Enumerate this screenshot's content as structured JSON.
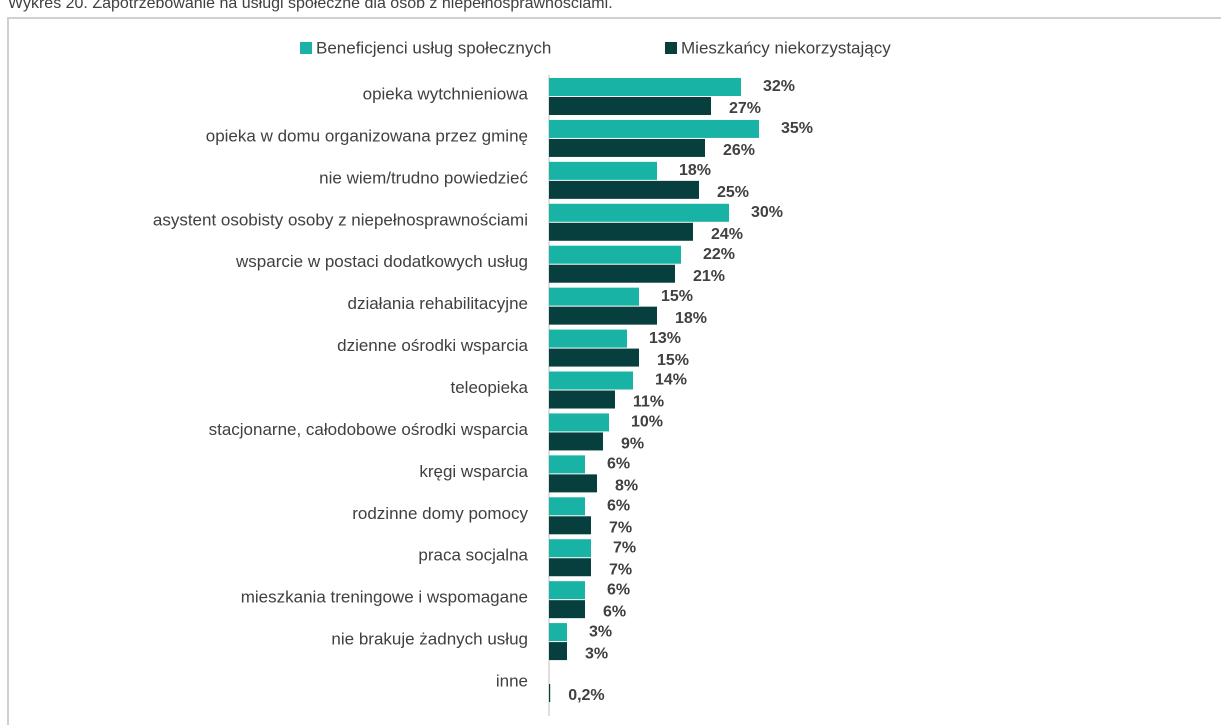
{
  "chart_data": {
    "type": "bar",
    "orientation": "horizontal",
    "title": "Wykres 20. Zapotrzebowanie na usługi społeczne dla osób z niepełnosprawnościami.",
    "categories": [
      "opieka wytchnieniowa",
      "opieka w domu organizowana przez gminę",
      "nie wiem/trudno powiedzieć",
      "asystent osobisty osoby z niepełnosprawnościami",
      "wsparcie w postaci dodatkowych usług",
      "działania rehabilitacyjne",
      "dzienne ośrodki wsparcia",
      "teleopieka",
      "stacjonarne, całodobowe ośrodki wsparcia",
      "kręgi wsparcia",
      "rodzinne domy pomocy",
      "praca socjalna",
      "mieszkania treningowe i wspomagane",
      "nie brakuje żadnych usług",
      "inne"
    ],
    "series": [
      {
        "name": "Beneficjenci usług społecznych",
        "color": "#19b3a5",
        "values": [
          32,
          35,
          18,
          30,
          22,
          15,
          13,
          14,
          10,
          6,
          6,
          7,
          6,
          3,
          null
        ],
        "value_labels": [
          "32%",
          "35%",
          "18%",
          "30%",
          "22%",
          "15%",
          "13%",
          "14%",
          "10%",
          "6%",
          "6%",
          "7%",
          "6%",
          "3%",
          null
        ]
      },
      {
        "name": "Mieszkańcy niekorzystający",
        "color": "#073f3e",
        "values": [
          27,
          26,
          25,
          24,
          21,
          18,
          15,
          11,
          9,
          8,
          7,
          7,
          6,
          3,
          0.2
        ],
        "value_labels": [
          "27%",
          "26%",
          "25%",
          "24%",
          "21%",
          "18%",
          "15%",
          "11%",
          "9%",
          "8%",
          "7%",
          "7%",
          "6%",
          "3%",
          "0,2%"
        ]
      }
    ],
    "xlim": [
      0,
      40
    ],
    "legend": "top"
  }
}
